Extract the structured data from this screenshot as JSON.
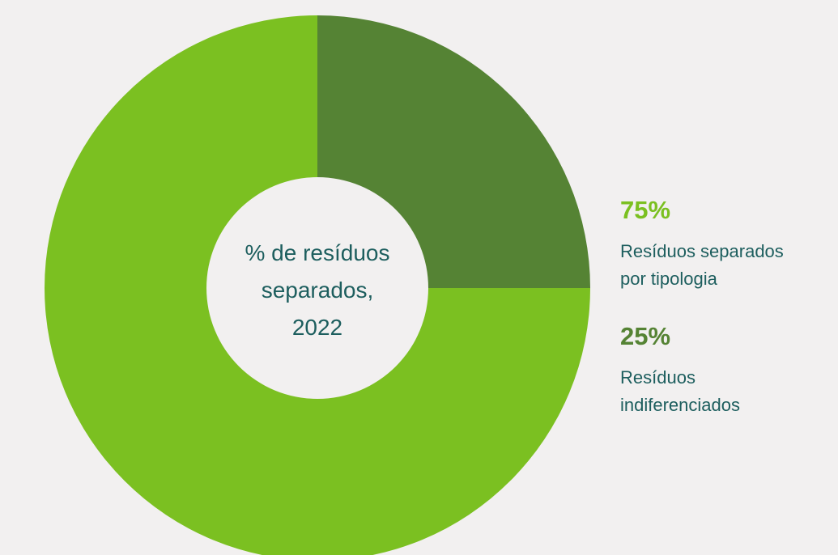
{
  "chart_data": {
    "type": "pie",
    "donut": true,
    "title": [
      "% de resíduos",
      "separados,",
      "2022"
    ],
    "categories": [
      "Resíduos separados por tipologia",
      "Resíduos indiferenciados"
    ],
    "values": [
      75,
      25
    ],
    "value_labels": [
      "75%",
      "25%"
    ],
    "colors": [
      "#7bc021",
      "#558334"
    ]
  }
}
